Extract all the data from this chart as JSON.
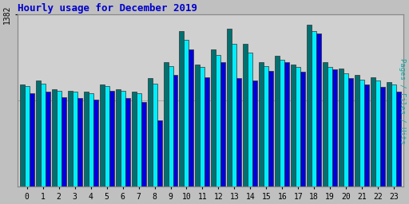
{
  "title": "Hourly usage for December 2019",
  "ylabel": "Pages / Files / Hits",
  "xlabel_values": [
    0,
    1,
    2,
    3,
    4,
    5,
    6,
    7,
    8,
    9,
    10,
    11,
    12,
    13,
    14,
    15,
    16,
    17,
    18,
    19,
    20,
    21,
    22,
    23
  ],
  "ytick_label": "1382",
  "ytick_value": 1382,
  "ymax": 1382,
  "background_color": "#c0c0c0",
  "plot_bg_color": "#d0d0d0",
  "title_color": "#0000cc",
  "ylabel_color": "#00aaaa",
  "colors": {
    "pages": "#007070",
    "files": "#0000dd",
    "hits": "#00eeff"
  },
  "pages": [
    820,
    850,
    780,
    770,
    760,
    820,
    780,
    760,
    870,
    1000,
    1250,
    980,
    1100,
    1270,
    1150,
    1000,
    1050,
    980,
    1300,
    1000,
    950,
    900,
    880,
    840
  ],
  "files": [
    750,
    760,
    720,
    710,
    700,
    770,
    710,
    680,
    530,
    900,
    1100,
    880,
    1000,
    870,
    850,
    930,
    1000,
    920,
    1230,
    940,
    870,
    820,
    800,
    760
  ],
  "hits": [
    810,
    830,
    770,
    760,
    750,
    810,
    770,
    750,
    830,
    970,
    1180,
    960,
    1060,
    1150,
    1080,
    970,
    1020,
    960,
    1250,
    960,
    910,
    860,
    850,
    820
  ]
}
